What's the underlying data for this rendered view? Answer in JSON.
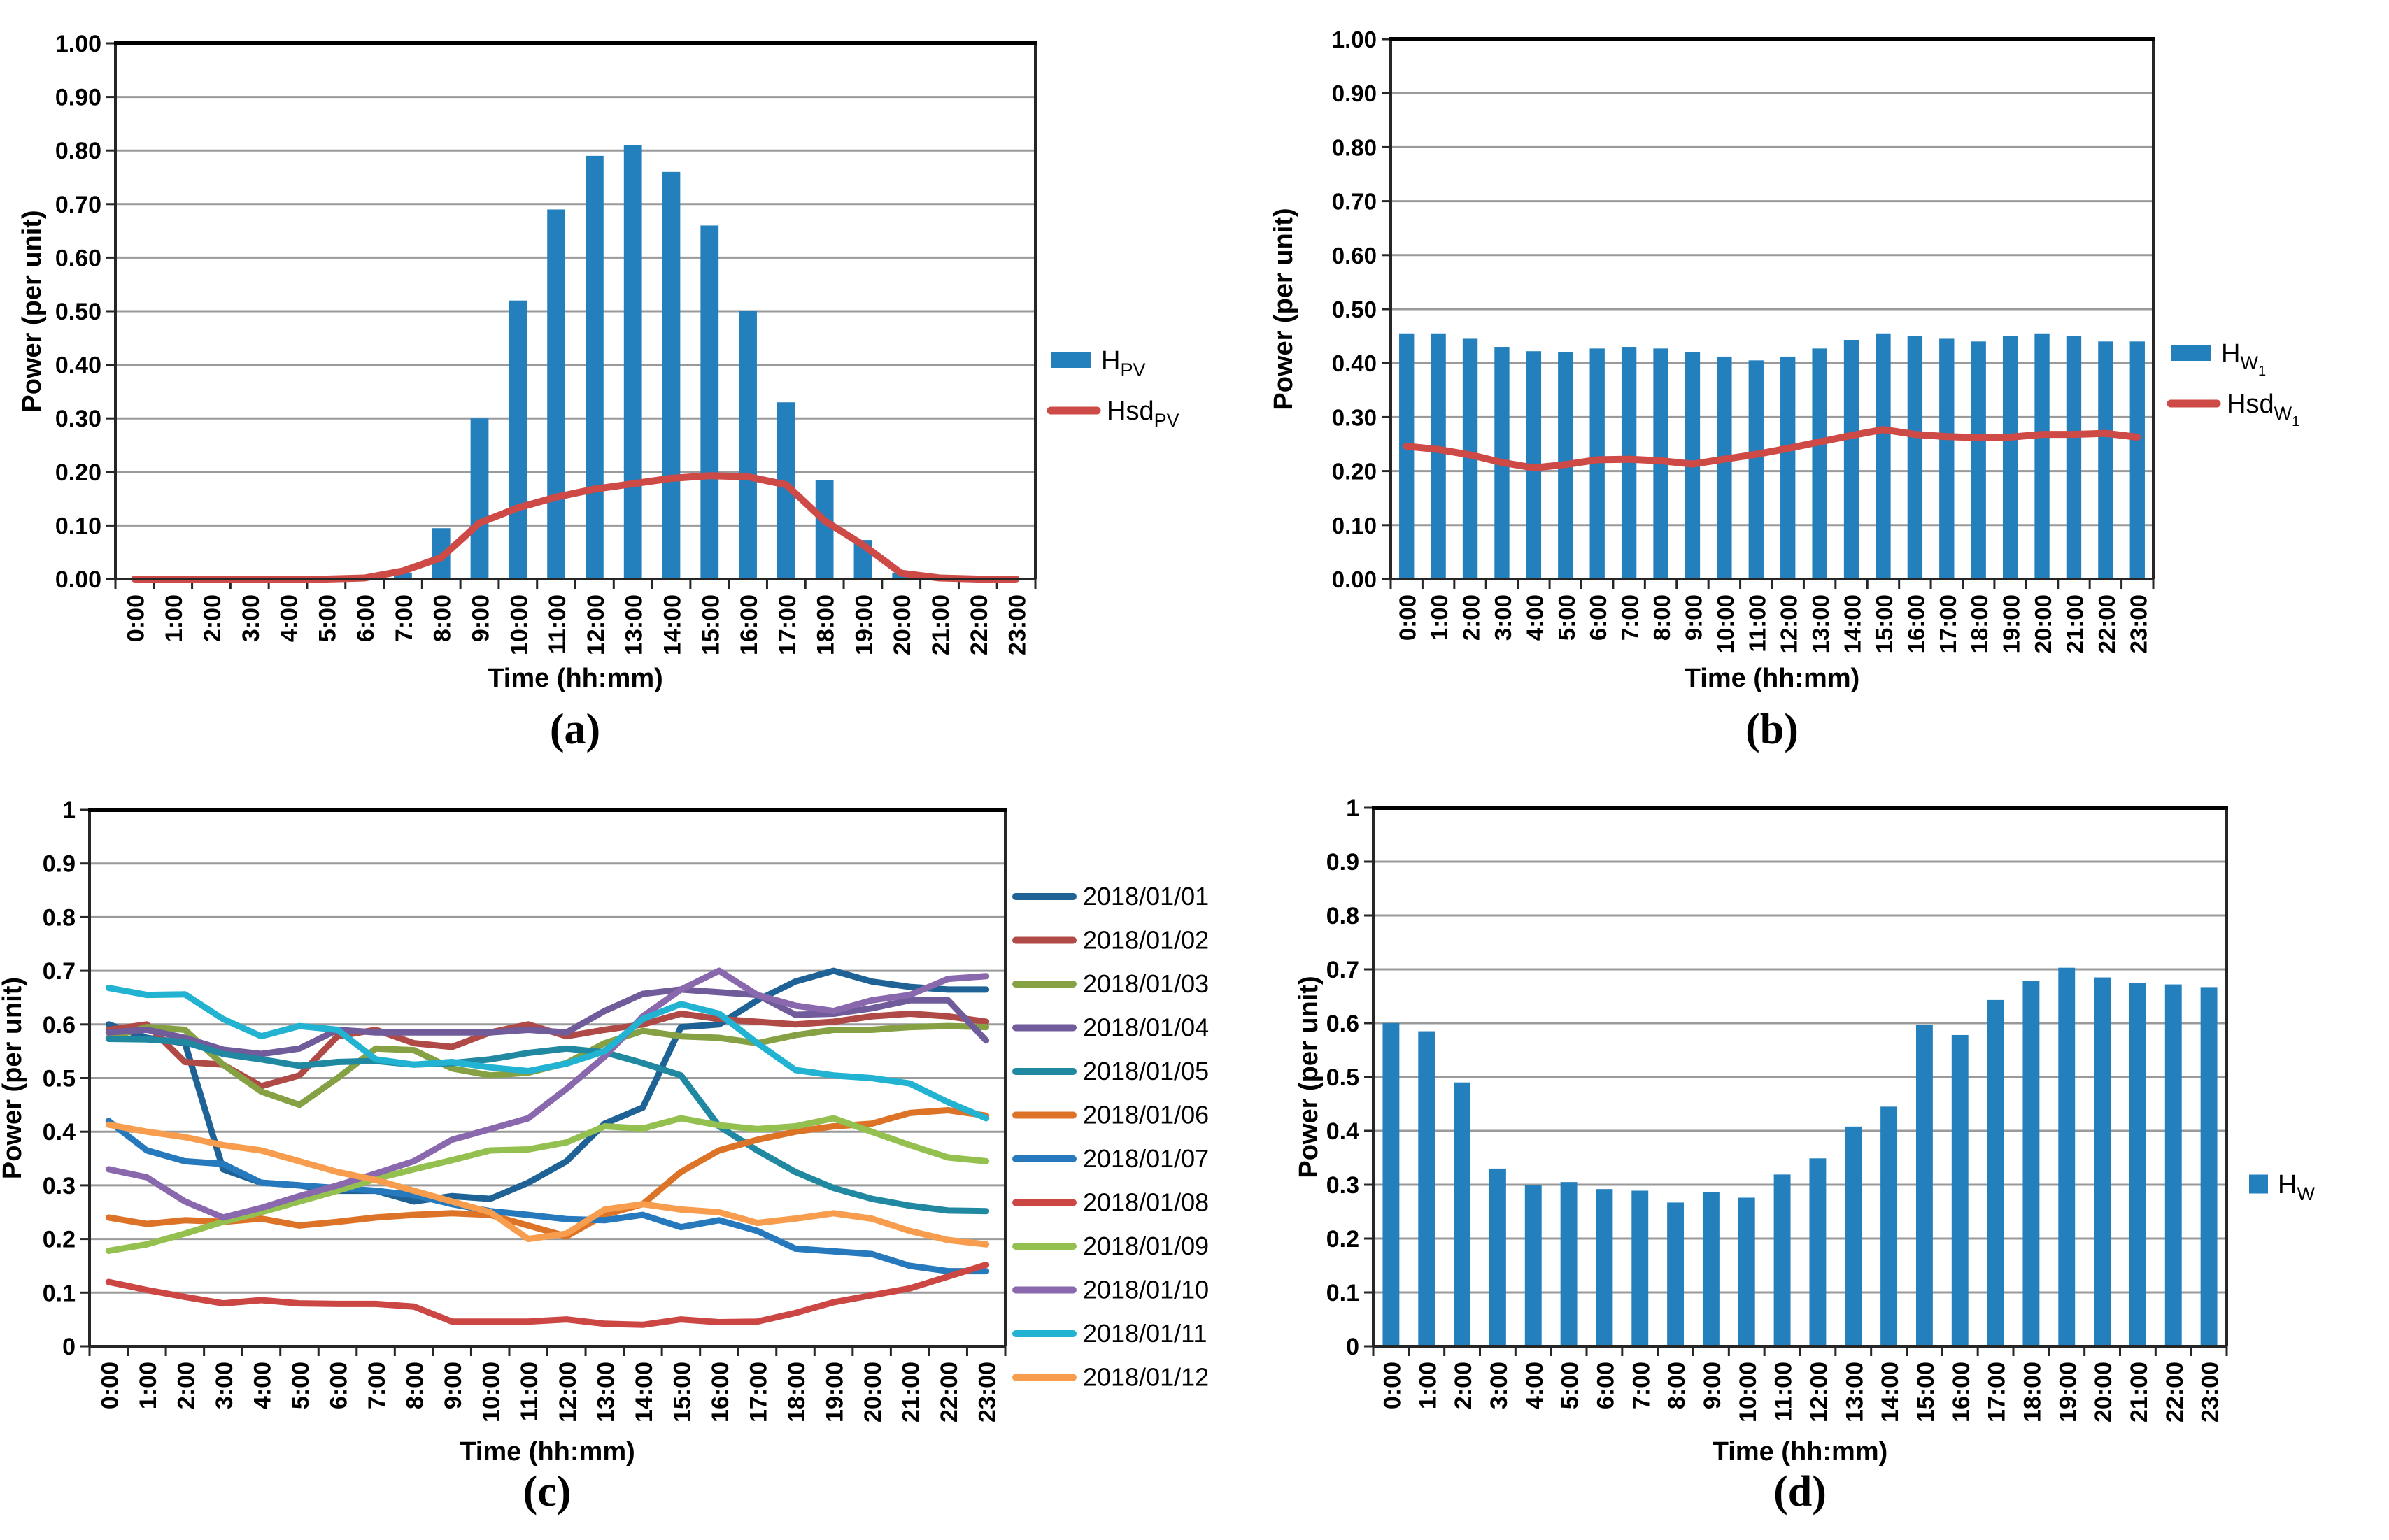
{
  "figure": {
    "background": "#FFFFFF",
    "grid_color": "#9A9A9A",
    "axis_color": "#262626",
    "bar_blue": "#2480BD",
    "line_red": "#CE4A46"
  },
  "panels": [
    {
      "caption": "(a)"
    },
    {
      "caption": "(b)"
    },
    {
      "caption": "(c)"
    },
    {
      "caption": "(d)"
    }
  ],
  "chart_data": [
    {
      "id": "a",
      "type": "bar",
      "title": "",
      "xlabel": "Time (hh:mm)",
      "ylabel": "Power (per unit)",
      "ylim": [
        0,
        1
      ],
      "ytick_step": 0.1,
      "ytick_decimals": 2,
      "grid": true,
      "legend_position": "right",
      "categories": [
        "0:00",
        "1:00",
        "2:00",
        "3:00",
        "4:00",
        "5:00",
        "6:00",
        "7:00",
        "8:00",
        "9:00",
        "10:00",
        "11:00",
        "12:00",
        "13:00",
        "14:00",
        "15:00",
        "16:00",
        "17:00",
        "18:00",
        "19:00",
        "20:00",
        "21:00",
        "22:00",
        "23:00"
      ],
      "bar_series": [
        {
          "name": "HPV",
          "color": "#2480BD",
          "values": [
            0,
            0,
            0,
            0,
            0,
            0,
            0,
            0.012,
            0.095,
            0.3,
            0.52,
            0.69,
            0.79,
            0.81,
            0.76,
            0.66,
            0.5,
            0.33,
            0.185,
            0.073,
            0.012,
            0,
            0,
            0
          ]
        }
      ],
      "line_series": [
        {
          "name": "HsdPV",
          "color": "#CE4A46",
          "values": [
            0,
            0,
            0,
            0,
            0,
            0,
            0.002,
            0.015,
            0.04,
            0.105,
            0.133,
            0.153,
            0.168,
            0.178,
            0.188,
            0.193,
            0.191,
            0.176,
            0.109,
            0.064,
            0.011,
            0.002,
            0,
            0
          ]
        }
      ],
      "legend": [
        {
          "swatch": "rect",
          "color": "#2480BD",
          "main": "H",
          "sub": "PV",
          "subsub": ""
        },
        {
          "swatch": "line",
          "color": "#CE4A46",
          "main": "Hsd",
          "sub": "PV",
          "subsub": ""
        }
      ]
    },
    {
      "id": "b",
      "type": "bar",
      "title": "",
      "xlabel": "Time (hh:mm)",
      "ylabel": "Power (per unit)",
      "ylim": [
        0,
        1
      ],
      "ytick_step": 0.1,
      "ytick_decimals": 2,
      "grid": true,
      "legend_position": "right",
      "categories": [
        "0:00",
        "1:00",
        "2:00",
        "3:00",
        "4:00",
        "5:00",
        "6:00",
        "7:00",
        "8:00",
        "9:00",
        "10:00",
        "11:00",
        "12:00",
        "13:00",
        "14:00",
        "15:00",
        "16:00",
        "17:00",
        "18:00",
        "19:00",
        "20:00",
        "21:00",
        "22:00",
        "23:00"
      ],
      "bar_series": [
        {
          "name": "HW1",
          "color": "#2480BD",
          "values": [
            0.455,
            0.455,
            0.445,
            0.43,
            0.422,
            0.42,
            0.427,
            0.43,
            0.427,
            0.42,
            0.412,
            0.405,
            0.412,
            0.427,
            0.443,
            0.455,
            0.45,
            0.445,
            0.44,
            0.45,
            0.455,
            0.45,
            0.44,
            0.44
          ]
        }
      ],
      "line_series": [
        {
          "name": "HsdW1",
          "color": "#CE4A46",
          "values": [
            0.246,
            0.24,
            0.23,
            0.216,
            0.206,
            0.212,
            0.221,
            0.222,
            0.219,
            0.213,
            0.222,
            0.231,
            0.242,
            0.254,
            0.266,
            0.277,
            0.268,
            0.264,
            0.262,
            0.263,
            0.268,
            0.268,
            0.27,
            0.263
          ]
        }
      ],
      "legend": [
        {
          "swatch": "rect",
          "color": "#2480BD",
          "main": "H",
          "sub": "W",
          "subsub": "1"
        },
        {
          "swatch": "line",
          "color": "#CE4A46",
          "main": "Hsd",
          "sub": "W",
          "subsub": "1"
        }
      ]
    },
    {
      "id": "c",
      "type": "line",
      "title": "",
      "xlabel": "Time (hh:mm)",
      "ylabel": "Power (per unit)",
      "ylim": [
        0,
        1
      ],
      "ytick_step": 0.1,
      "ytick_decimals": 1,
      "grid": true,
      "legend_position": "right",
      "categories": [
        "0:00",
        "1:00",
        "2:00",
        "3:00",
        "4:00",
        "5:00",
        "6:00",
        "7:00",
        "8:00",
        "9:00",
        "10:00",
        "11:00",
        "12:00",
        "13:00",
        "14:00",
        "15:00",
        "16:00",
        "17:00",
        "18:00",
        "19:00",
        "20:00",
        "21:00",
        "22:00",
        "23:00"
      ],
      "line_series": [
        {
          "name": "2018/01/01",
          "color": "#1F6396",
          "values": [
            0.6,
            0.575,
            0.565,
            0.33,
            0.305,
            0.3,
            0.29,
            0.29,
            0.27,
            0.28,
            0.275,
            0.305,
            0.345,
            0.415,
            0.445,
            0.595,
            0.6,
            0.645,
            0.68,
            0.7,
            0.68,
            0.67,
            0.665,
            0.665
          ]
        },
        {
          "name": "2018/01/02",
          "color": "#B04A47",
          "values": [
            0.59,
            0.6,
            0.53,
            0.525,
            0.485,
            0.505,
            0.578,
            0.59,
            0.565,
            0.558,
            0.585,
            0.6,
            0.578,
            0.59,
            0.6,
            0.62,
            0.61,
            0.605,
            0.6,
            0.605,
            0.615,
            0.62,
            0.615,
            0.605
          ]
        },
        {
          "name": "2018/01/03",
          "color": "#85A144",
          "values": [
            0.575,
            0.595,
            0.59,
            0.525,
            0.475,
            0.45,
            0.5,
            0.555,
            0.552,
            0.518,
            0.505,
            0.51,
            0.528,
            0.565,
            0.588,
            0.578,
            0.575,
            0.565,
            0.58,
            0.59,
            0.59,
            0.595,
            0.597,
            0.595
          ]
        },
        {
          "name": "2018/01/04",
          "color": "#715C9B",
          "values": [
            0.585,
            0.59,
            0.575,
            0.553,
            0.545,
            0.555,
            0.59,
            0.585,
            0.585,
            0.585,
            0.585,
            0.59,
            0.585,
            0.625,
            0.657,
            0.665,
            0.66,
            0.655,
            0.618,
            0.62,
            0.63,
            0.645,
            0.645,
            0.57
          ]
        },
        {
          "name": "2018/01/05",
          "color": "#2088A0",
          "values": [
            0.573,
            0.572,
            0.567,
            0.545,
            0.535,
            0.523,
            0.53,
            0.532,
            0.525,
            0.528,
            0.535,
            0.547,
            0.555,
            0.548,
            0.528,
            0.505,
            0.41,
            0.365,
            0.325,
            0.295,
            0.275,
            0.262,
            0.253,
            0.252
          ]
        },
        {
          "name": "2018/01/06",
          "color": "#DD7327",
          "values": [
            0.24,
            0.228,
            0.235,
            0.232,
            0.238,
            0.225,
            0.232,
            0.24,
            0.245,
            0.248,
            0.245,
            0.225,
            0.205,
            0.245,
            0.265,
            0.325,
            0.365,
            0.385,
            0.4,
            0.41,
            0.415,
            0.435,
            0.44,
            0.43
          ]
        },
        {
          "name": "2018/01/07",
          "color": "#2779BD",
          "values": [
            0.42,
            0.365,
            0.345,
            0.34,
            0.305,
            0.3,
            0.295,
            0.29,
            0.282,
            0.265,
            0.252,
            0.245,
            0.237,
            0.235,
            0.245,
            0.222,
            0.235,
            0.215,
            0.182,
            0.177,
            0.172,
            0.15,
            0.14,
            0.14
          ]
        },
        {
          "name": "2018/01/08",
          "color": "#CC4744",
          "values": [
            0.12,
            0.105,
            0.092,
            0.08,
            0.086,
            0.08,
            0.079,
            0.079,
            0.074,
            0.046,
            0.046,
            0.046,
            0.05,
            0.042,
            0.04,
            0.05,
            0.045,
            0.046,
            0.062,
            0.082,
            0.095,
            0.108,
            0.13,
            0.152
          ]
        },
        {
          "name": "2018/01/09",
          "color": "#94C04F",
          "values": [
            0.178,
            0.19,
            0.21,
            0.232,
            0.25,
            0.27,
            0.29,
            0.312,
            0.33,
            0.347,
            0.365,
            0.367,
            0.38,
            0.41,
            0.406,
            0.425,
            0.412,
            0.405,
            0.41,
            0.425,
            0.4,
            0.375,
            0.352,
            0.345
          ]
        },
        {
          "name": "2018/01/10",
          "color": "#8A68AD",
          "values": [
            0.33,
            0.315,
            0.27,
            0.24,
            0.258,
            0.28,
            0.3,
            0.322,
            0.345,
            0.385,
            0.405,
            0.425,
            0.48,
            0.54,
            0.615,
            0.665,
            0.7,
            0.655,
            0.635,
            0.625,
            0.645,
            0.655,
            0.685,
            0.69
          ]
        },
        {
          "name": "2018/01/11",
          "color": "#22B2D2",
          "values": [
            0.668,
            0.655,
            0.656,
            0.61,
            0.578,
            0.597,
            0.59,
            0.535,
            0.525,
            0.53,
            0.52,
            0.513,
            0.527,
            0.55,
            0.61,
            0.638,
            0.62,
            0.565,
            0.515,
            0.505,
            0.5,
            0.49,
            0.455,
            0.425
          ]
        },
        {
          "name": "2018/01/12",
          "color": "#F89C4D",
          "values": [
            0.413,
            0.4,
            0.39,
            0.375,
            0.365,
            0.345,
            0.325,
            0.31,
            0.29,
            0.27,
            0.25,
            0.2,
            0.21,
            0.255,
            0.265,
            0.255,
            0.25,
            0.23,
            0.238,
            0.248,
            0.238,
            0.215,
            0.198,
            0.19
          ]
        }
      ],
      "legend_from_series": true
    },
    {
      "id": "d",
      "type": "bar",
      "title": "",
      "xlabel": "Time (hh:mm)",
      "ylabel": "Power (per unit)",
      "ylim": [
        0,
        1
      ],
      "ytick_step": 0.1,
      "ytick_decimals": 1,
      "grid": true,
      "legend_position": "right",
      "categories": [
        "0:00",
        "1:00",
        "2:00",
        "3:00",
        "4:00",
        "5:00",
        "6:00",
        "7:00",
        "8:00",
        "9:00",
        "10:00",
        "11:00",
        "12:00",
        "13:00",
        "14:00",
        "15:00",
        "16:00",
        "17:00",
        "18:00",
        "19:00",
        "20:00",
        "21:00",
        "22:00",
        "23:00"
      ],
      "bar_series": [
        {
          "name": "HW",
          "color": "#2480BD",
          "values": [
            0.6,
            0.585,
            0.49,
            0.33,
            0.3,
            0.305,
            0.292,
            0.289,
            0.267,
            0.286,
            0.276,
            0.319,
            0.349,
            0.408,
            0.445,
            0.597,
            0.578,
            0.643,
            0.678,
            0.703,
            0.685,
            0.675,
            0.672,
            0.667
          ]
        }
      ],
      "line_series": [],
      "legend": [
        {
          "swatch": "rect",
          "color": "#2480BD",
          "main": "H",
          "sub": "W",
          "subsub": ""
        }
      ]
    }
  ]
}
